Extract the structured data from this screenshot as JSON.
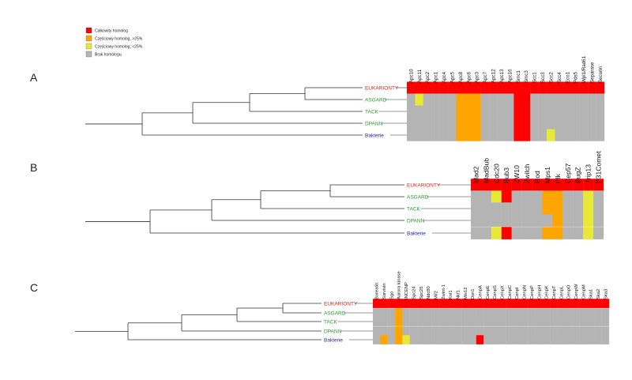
{
  "colors": {
    "full": "#ff0000",
    "over25": "#ffa500",
    "under25": "#e8e836",
    "none": "#b4b4b4",
    "eukaryota": "#e0201a",
    "asgard": "#2c9a2c",
    "tack": "#2c9a2c",
    "dpann": "#2c9a2c",
    "bacteria": "#2020b0",
    "tree": "#333333"
  },
  "legend": [
    {
      "code": "F",
      "label": "Całkowity homolog",
      "color": "full"
    },
    {
      "code": "O",
      "label": "Częściowy homolog, >25%",
      "color": "over25"
    },
    {
      "code": "U",
      "label": "Częściowy homolog, <25%",
      "color": "under25"
    },
    {
      "code": "N",
      "label": "Brak homologu",
      "color": "none"
    }
  ],
  "chart_data": {
    "type": "heatmap",
    "status_codes": {
      "F": "Całkowity homolog",
      "O": "Częściowy homolog, >25%",
      "U": "Częściowy homolog, <25%",
      "N": "Brak homologu"
    },
    "taxa": [
      {
        "name": "EUKARIONTY",
        "color": "eukaryota"
      },
      {
        "name": "ASGARD",
        "color": "asgard"
      },
      {
        "name": "TACK",
        "color": "tack"
      },
      {
        "name": "DPANN",
        "color": "dpann"
      },
      {
        "name": "Bakterie",
        "color": "bacteria"
      }
    ],
    "panels": [
      {
        "panel_label": "A",
        "proteins": [
          "Apc10",
          "Apc11",
          "Apc2",
          "Apc1",
          "Apc4",
          "Apc5",
          "Apc8",
          "Apc6",
          "Apc3",
          "Apc7",
          "Apc12",
          "Apc13",
          "Apc16",
          "Smc1",
          "Smc3",
          "Scc1",
          "Scc3",
          "Scc2",
          "Scc4",
          "Eco1",
          "Pds5",
          "Wpl1/Rad61",
          "Separase",
          "Securin"
        ],
        "rows": [
          "FFFFFFFFFFFFFFFFFFFFFFFF",
          "NUNNNNOOONNNNFFNNNNNNNNN",
          "NNNNNNOOONNNNFFNNNNNNNNN",
          "NNNNNNOOONNNNFFNNNNNNNNN",
          "NNNNNNOOONNNNFFNNUNNNNNN"
        ]
      },
      {
        "panel_label": "B",
        "proteins": [
          "Mad2",
          "MadBub",
          "Cdc20",
          "Bub3",
          "ZW10",
          "Zwilch",
          "Rod",
          "Mps1",
          "Plk",
          "Cep57",
          "BugZ",
          "Trip13",
          "P31Comet"
        ],
        "rows": [
          "FFFFFFFFFFFFF",
          "NNUFNNNOONNUN",
          "NNNNNNNOONNUN",
          "NNNNNNNNONNUN",
          "NNUFNNNOONNUN"
        ]
      },
      {
        "panel_label": "C",
        "proteins": [
          "Borealin",
          "Survivin",
          "Sgo",
          "Aurora kinase",
          "INCENP",
          "Spc24",
          "Spc25",
          "Ndc80",
          "Mif2",
          "Zwint-1",
          "Knl1",
          "Nkf1",
          "Mis12",
          "Dsn1",
          "CenpA",
          "CenpE",
          "CenpS",
          "CenpX",
          "CenpC",
          "CenpI",
          "CenpN",
          "CenpP",
          "CenpH",
          "CenpK",
          "CenpT",
          "CenpL",
          "CenpO",
          "CenpW",
          "CenpM",
          "Ska1",
          "Ska2",
          "Ska3"
        ],
        "rows": [
          "FFFFFFFFFFFFFFFFFFFFFFFFFFFFFFFF",
          "NNNONNNNNNNNNNNNNNNNNNNNNNNNNNNN",
          "NNNONNNNNNNNNNNNNNNNNNNNNNNNNNNN",
          "NNNONNNNNNNNNNNNNNNNNNNNNNNNNNNN",
          "NONOUNNNNNNNNNFNNNNNNNNNNNNNNNNN"
        ]
      }
    ]
  }
}
